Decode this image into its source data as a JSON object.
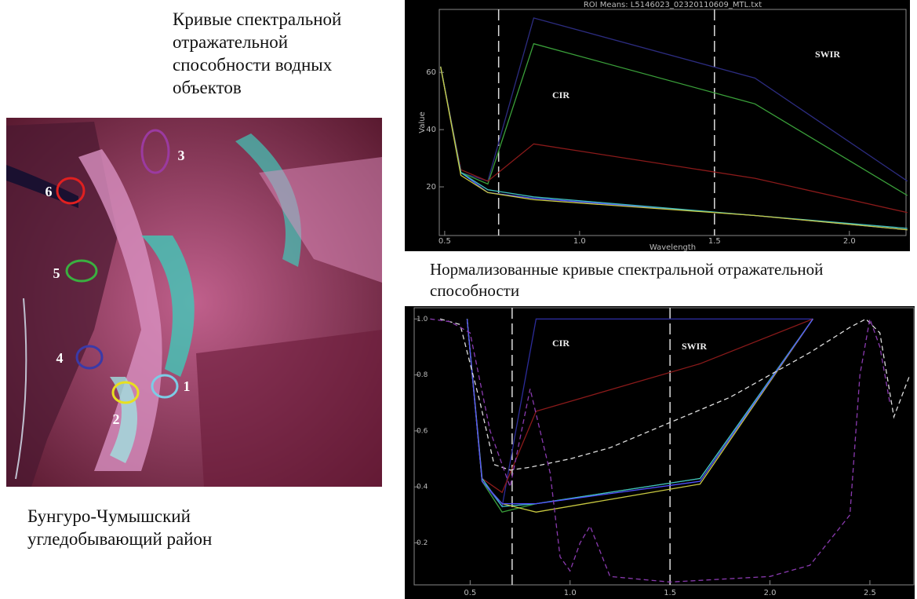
{
  "captions": {
    "spectral_title": "Кривые спектральной отражательной способности водных объектов",
    "normalized_title": "Нормализованные кривые спектральной отражательной способности",
    "region": "Бунгуро-Чумышский угледобывающий район"
  },
  "map": {
    "markers": [
      "1",
      "2",
      "3",
      "4",
      "5",
      "6"
    ]
  },
  "chart_data": [
    {
      "type": "line",
      "title": "ROI Means: L5146023_02320110609_MTL.txt",
      "xlabel": "Wavelength",
      "ylabel": "Value",
      "x": [
        0.485,
        0.56,
        0.66,
        0.83,
        1.65,
        2.215
      ],
      "series": [
        {
          "color": "#2c2c80",
          "values": [
            62,
            25,
            22,
            79,
            58,
            22
          ]
        },
        {
          "color": "#3aa03a",
          "values": [
            62,
            25,
            21,
            70,
            49,
            17
          ]
        },
        {
          "color": "#8b1a1a",
          "values": [
            62,
            26,
            22,
            35,
            23,
            11
          ]
        },
        {
          "color": "#5050ff",
          "values": [
            62,
            25,
            18,
            16,
            10,
            5
          ]
        },
        {
          "color": "#40c0c0",
          "values": [
            62,
            25,
            19,
            16.5,
            10,
            5.5
          ]
        },
        {
          "color": "#c8c840",
          "values": [
            62,
            24,
            18,
            15.5,
            10,
            5
          ]
        }
      ],
      "xlim": [
        0.48,
        2.21
      ],
      "ylim": [
        3,
        82
      ],
      "xticks": [
        0.5,
        {
          "value": 1,
          "label": "1.0"
        },
        1.5,
        {
          "value": 2,
          "label": "2.0"
        }
      ],
      "yticks": [
        20,
        40,
        60
      ],
      "vlines": [
        0.7,
        1.5
      ],
      "annotations": [
        "CIR",
        "SWIR"
      ]
    },
    {
      "type": "line",
      "x": [
        0.485,
        0.56,
        0.66,
        0.83,
        1.65,
        2.215
      ],
      "series": [
        {
          "color": "#2c2c9a",
          "values": [
            1.0,
            0.42,
            0.33,
            1.0,
            1.0,
            1.0
          ]
        },
        {
          "color": "#8b1a1a",
          "values": [
            1.0,
            0.43,
            0.38,
            0.67,
            0.84,
            1.0
          ]
        },
        {
          "color": "#3aa03a",
          "values": [
            1.0,
            0.42,
            0.31,
            0.34,
            0.43,
            1.0
          ]
        },
        {
          "color": "#40c0c0",
          "values": [
            1.0,
            0.43,
            0.33,
            0.34,
            0.43,
            1.0
          ]
        },
        {
          "color": "#c8c840",
          "values": [
            1.0,
            0.42,
            0.34,
            0.31,
            0.41,
            1.0
          ]
        },
        {
          "color": "#5050ff",
          "values": [
            1.0,
            0.42,
            0.34,
            0.34,
            0.42,
            1.0
          ]
        },
        {
          "color": "#dddddd",
          "dash": true,
          "x": [
            0.35,
            0.45,
            0.55,
            0.62,
            0.7,
            0.8,
            1.0,
            1.2,
            1.4,
            1.6,
            1.8,
            2.0,
            2.2,
            2.4,
            2.48,
            2.55,
            2.62,
            2.7
          ],
          "values": [
            1.0,
            0.98,
            0.7,
            0.48,
            0.46,
            0.47,
            0.5,
            0.54,
            0.6,
            0.66,
            0.72,
            0.8,
            0.88,
            0.97,
            1.0,
            0.95,
            0.65,
            0.8
          ]
        },
        {
          "color": "#8a3ab0",
          "dash": true,
          "x": [
            0.3,
            0.4,
            0.5,
            0.6,
            0.7,
            0.8,
            0.9,
            0.95,
            1.0,
            1.05,
            1.1,
            1.2,
            1.5,
            2.0,
            2.2,
            2.4,
            2.45,
            2.5,
            2.55,
            2.6
          ],
          "values": [
            1.0,
            0.99,
            0.95,
            0.6,
            0.4,
            0.75,
            0.45,
            0.15,
            0.1,
            0.2,
            0.26,
            0.08,
            0.06,
            0.08,
            0.12,
            0.3,
            0.8,
            1.0,
            0.9,
            0.7
          ]
        }
      ],
      "xlim": [
        0.22,
        2.72
      ],
      "ylim": [
        0.05,
        1.04
      ],
      "xticks": [
        0.5,
        {
          "value": 1,
          "label": "1.0"
        },
        1.5,
        {
          "value": 2,
          "label": "2.0"
        },
        2.5
      ],
      "yticks": [
        0.2,
        0.4,
        0.6,
        0.8,
        {
          "value": 1,
          "label": "1.0"
        }
      ],
      "vlines": [
        0.71,
        1.5
      ],
      "annotations": [
        "CIR",
        "SWIR"
      ]
    }
  ]
}
